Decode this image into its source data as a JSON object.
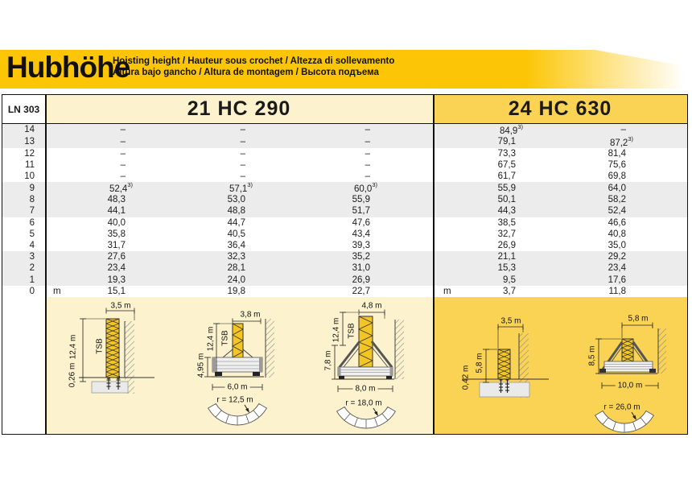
{
  "header": {
    "title": "Hubhöhe",
    "subtitle_line1": "Hoisting height / Hauteur sous crochet / Altezza di sollevamento",
    "subtitle_line2": "Altura bajo gancho / Altura de montagem / Высота подъема"
  },
  "colors": {
    "band_yellow": "#FCC606",
    "section_cream": "#FCF2CE",
    "section_yellow": "#FAD355",
    "stripe_gray": "#ECECEC",
    "tower_yellow": "#F3C525"
  },
  "table": {
    "code": "LN 303",
    "sections": [
      {
        "label": "21 HC 290"
      },
      {
        "label": "24 HC 630"
      }
    ],
    "unit": "m",
    "rows": [
      {
        "label": "14",
        "shaded": true,
        "m1": "",
        "v1": "–",
        "v2": "–",
        "v3": "–",
        "m2": "",
        "v4": "84,9^3)",
        "v5": "–"
      },
      {
        "label": "13",
        "shaded": true,
        "m1": "",
        "v1": "–",
        "v2": "–",
        "v3": "–",
        "m2": "",
        "v4": "79,1",
        "v5": "87,2^3)"
      },
      {
        "label": "12",
        "shaded": false,
        "m1": "",
        "v1": "–",
        "v2": "–",
        "v3": "–",
        "m2": "",
        "v4": "73,3",
        "v5": "81,4"
      },
      {
        "label": "11",
        "shaded": false,
        "m1": "",
        "v1": "–",
        "v2": "–",
        "v3": "–",
        "m2": "",
        "v4": "67,5",
        "v5": "75,6"
      },
      {
        "label": "10",
        "shaded": false,
        "m1": "",
        "v1": "–",
        "v2": "–",
        "v3": "–",
        "m2": "",
        "v4": "61,7",
        "v5": "69,8"
      },
      {
        "label": "9",
        "shaded": true,
        "m1": "",
        "v1": "52,4^3)",
        "v2": "57,1^3)",
        "v3": "60,0^3)",
        "m2": "",
        "v4": "55,9",
        "v5": "64,0"
      },
      {
        "label": "8",
        "shaded": true,
        "m1": "",
        "v1": "48,3",
        "v2": "53,0",
        "v3": "55,9",
        "m2": "",
        "v4": "50,1",
        "v5": "58,2"
      },
      {
        "label": "7",
        "shaded": true,
        "m1": "",
        "v1": "44,1",
        "v2": "48,8",
        "v3": "51,7",
        "m2": "",
        "v4": "44,3",
        "v5": "52,4"
      },
      {
        "label": "6",
        "shaded": false,
        "m1": "",
        "v1": "40,0",
        "v2": "44,7",
        "v3": "47,6",
        "m2": "",
        "v4": "38,5",
        "v5": "46,6"
      },
      {
        "label": "5",
        "shaded": false,
        "m1": "",
        "v1": "35,8",
        "v2": "40,5",
        "v3": "43,4",
        "m2": "",
        "v4": "32,7",
        "v5": "40,8"
      },
      {
        "label": "4",
        "shaded": false,
        "m1": "",
        "v1": "31,7",
        "v2": "36,4",
        "v3": "39,3",
        "m2": "",
        "v4": "26,9",
        "v5": "35,0"
      },
      {
        "label": "3",
        "shaded": true,
        "m1": "",
        "v1": "27,6",
        "v2": "32,3",
        "v3": "35,2",
        "m2": "",
        "v4": "21,1",
        "v5": "29,2"
      },
      {
        "label": "2",
        "shaded": true,
        "m1": "",
        "v1": "23,4",
        "v2": "28,1",
        "v3": "31,0",
        "m2": "",
        "v4": "15,3",
        "v5": "23,4"
      },
      {
        "label": "1",
        "shaded": true,
        "m1": "",
        "v1": "19,3",
        "v2": "24,0",
        "v3": "26,9",
        "m2": "",
        "v4": "9,5",
        "v5": "17,6"
      },
      {
        "label": "0",
        "shaded": false,
        "m1": "m",
        "v1": "15,1",
        "v2": "19,8",
        "v3": "22,7",
        "m2": "m",
        "v4": "3,7",
        "v5": "11,8"
      }
    ]
  },
  "diagrams": {
    "d1": {
      "width": "3,5 m",
      "tsb": "TSB",
      "height": "12,4 m",
      "depth": "0,26 m"
    },
    "d2": {
      "width": "3,8 m",
      "tsb": "TSB",
      "height": "12,4 m",
      "base_height": "4,95 m",
      "base_width": "6,0 m",
      "radius": "r = 12,5 m"
    },
    "d3": {
      "width": "4,8 m",
      "tsb": "TSB",
      "height": "12,4 m",
      "base_height": "7,8 m",
      "base_width": "8,0 m",
      "radius": "r = 18,0 m"
    },
    "d4": {
      "width": "3,5 m",
      "height": "5,8 m",
      "depth": "0,42 m"
    },
    "d5": {
      "width": "5,8 m",
      "height": "8,5 m",
      "base_width": "10,0 m",
      "radius": "r = 26,0 m"
    }
  }
}
